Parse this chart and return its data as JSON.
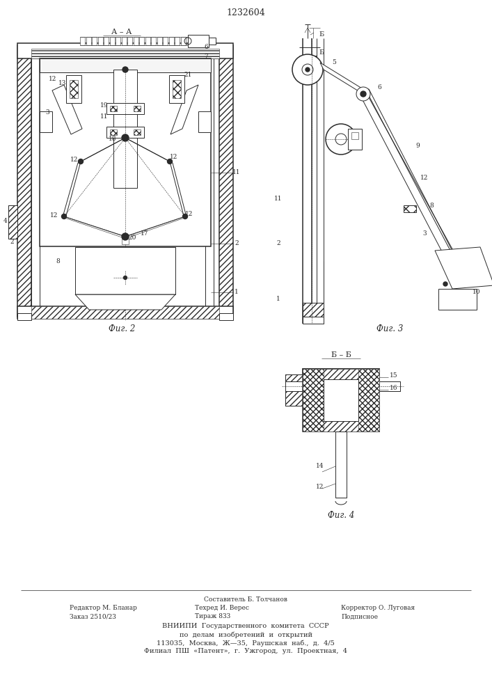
{
  "patent_number": "1232604",
  "bg_color": "#ffffff",
  "line_color": "#2a2a2a",
  "fig2_label": "Фиг. 2",
  "fig3_label": "Фиг. 3",
  "fig4_label": "Фиг. 4",
  "section_aa": "А – А",
  "section_bb": "Б – Б",
  "page_width": 7.07,
  "page_height": 10.0,
  "dpi": 100
}
